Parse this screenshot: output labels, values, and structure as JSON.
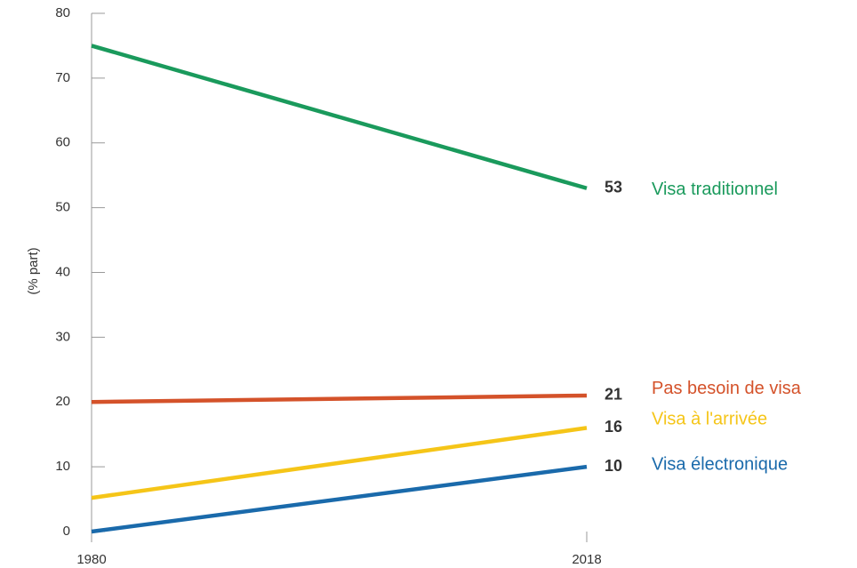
{
  "chart_data": {
    "type": "line",
    "y_label": "(% part)",
    "x": [
      1980,
      2018
    ],
    "xlim": [
      1980,
      2018
    ],
    "xticks": [
      1980,
      2018
    ],
    "ylim": [
      0,
      80
    ],
    "yticks": [
      0,
      10,
      20,
      30,
      40,
      50,
      60,
      70,
      80
    ],
    "grid": false,
    "series": [
      {
        "name": "Visa traditionnel",
        "color": "#1a9a5c",
        "values": [
          75,
          53
        ]
      },
      {
        "name": "Pas besoin de visa",
        "color": "#d4522a",
        "values": [
          20,
          21
        ]
      },
      {
        "name": "Visa à l'arrivée",
        "color": "#f5c518",
        "values": [
          5.2,
          16
        ]
      },
      {
        "name": "Visa électronique",
        "color": "#1a6aab",
        "values": [
          0,
          10
        ]
      }
    ]
  }
}
